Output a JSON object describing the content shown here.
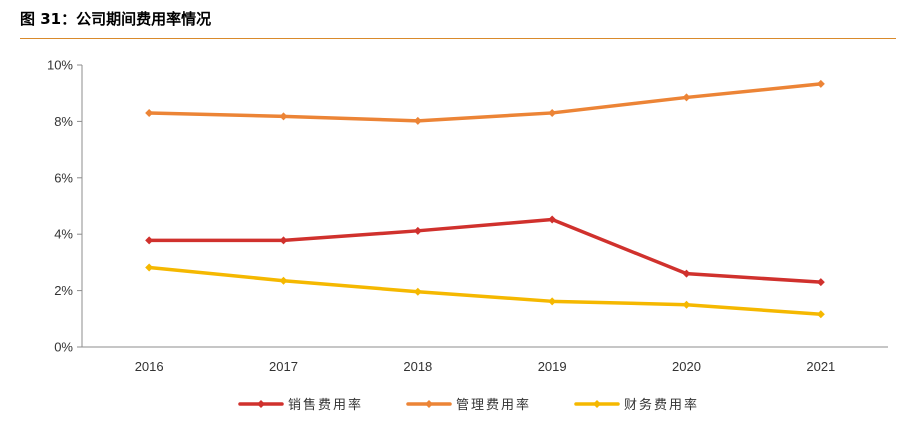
{
  "figure_title": "图 31：公司期间费用率情况",
  "colors": {
    "title_rule": "#d98a2b"
  },
  "chart_data": {
    "type": "line",
    "title": "",
    "xlabel": "",
    "ylabel": "",
    "categories": [
      "2016",
      "2017",
      "2018",
      "2019",
      "2020",
      "2021"
    ],
    "ylim": [
      0,
      10
    ],
    "yticks": [
      0,
      2,
      4,
      6,
      8,
      10
    ],
    "ytick_labels": [
      "0%",
      "2%",
      "4%",
      "6%",
      "8%",
      "10%"
    ],
    "grid": false,
    "legend_position": "bottom",
    "series": [
      {
        "name": "销售费用率",
        "color": "#d0312d",
        "values": [
          3.78,
          3.78,
          4.12,
          4.52,
          2.6,
          2.3
        ]
      },
      {
        "name": "管理费用率",
        "color": "#ec8436",
        "values": [
          8.3,
          8.18,
          8.02,
          8.3,
          8.85,
          9.33
        ]
      },
      {
        "name": "财务费用率",
        "color": "#f5b800",
        "values": [
          2.82,
          2.35,
          1.96,
          1.62,
          1.5,
          1.16
        ]
      }
    ]
  }
}
